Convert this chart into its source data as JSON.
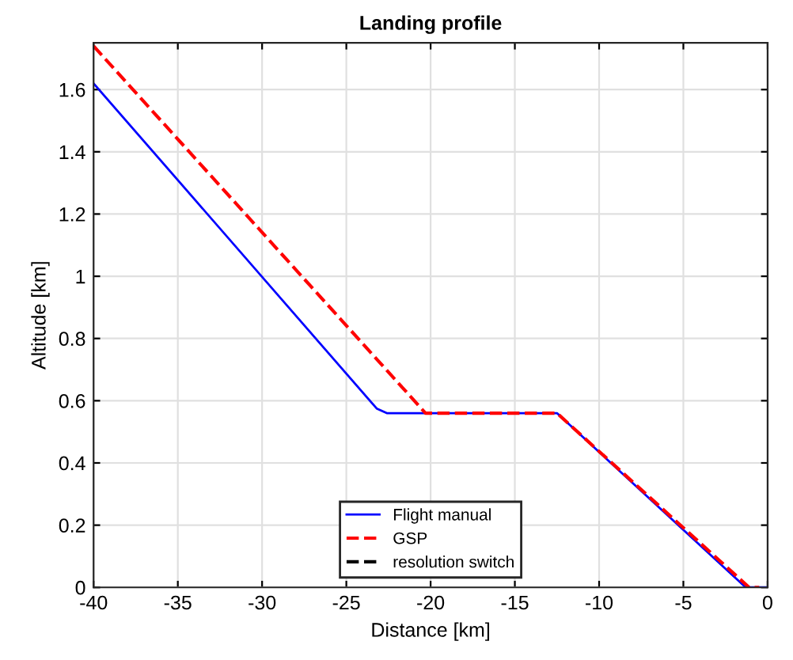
{
  "chart_data": {
    "type": "line",
    "title": "Landing profile",
    "xlabel": "Distance [km]",
    "ylabel": "Altitude [km]",
    "xlim": [
      -40,
      0
    ],
    "xticks": [
      -40,
      -35,
      -30,
      -25,
      -20,
      -15,
      -10,
      -5,
      0
    ],
    "ylim": [
      0,
      1.75
    ],
    "yticks": [
      0,
      0.2,
      0.4,
      0.6,
      0.8,
      1,
      1.2,
      1.4,
      1.6
    ],
    "grid": true,
    "legend": "bottom",
    "series": [
      {
        "name": "Flight manual",
        "color": "#0000ff",
        "line_style": "solid",
        "x": [
          -40,
          -23.2,
          -22.6,
          -12.5,
          -1.3,
          0
        ],
        "values": [
          1.62,
          0.575,
          0.56,
          0.56,
          0,
          0
        ]
      },
      {
        "name": "GSP",
        "color": "#ff0000",
        "line_style": "dashed",
        "x": [
          -40,
          -20.3,
          -12.5,
          -1.1,
          -0.5
        ],
        "values": [
          1.74,
          0.56,
          0.56,
          0,
          0
        ]
      },
      {
        "name": "resolution switch",
        "color": "#000000",
        "line_style": "dashed"
      }
    ]
  }
}
